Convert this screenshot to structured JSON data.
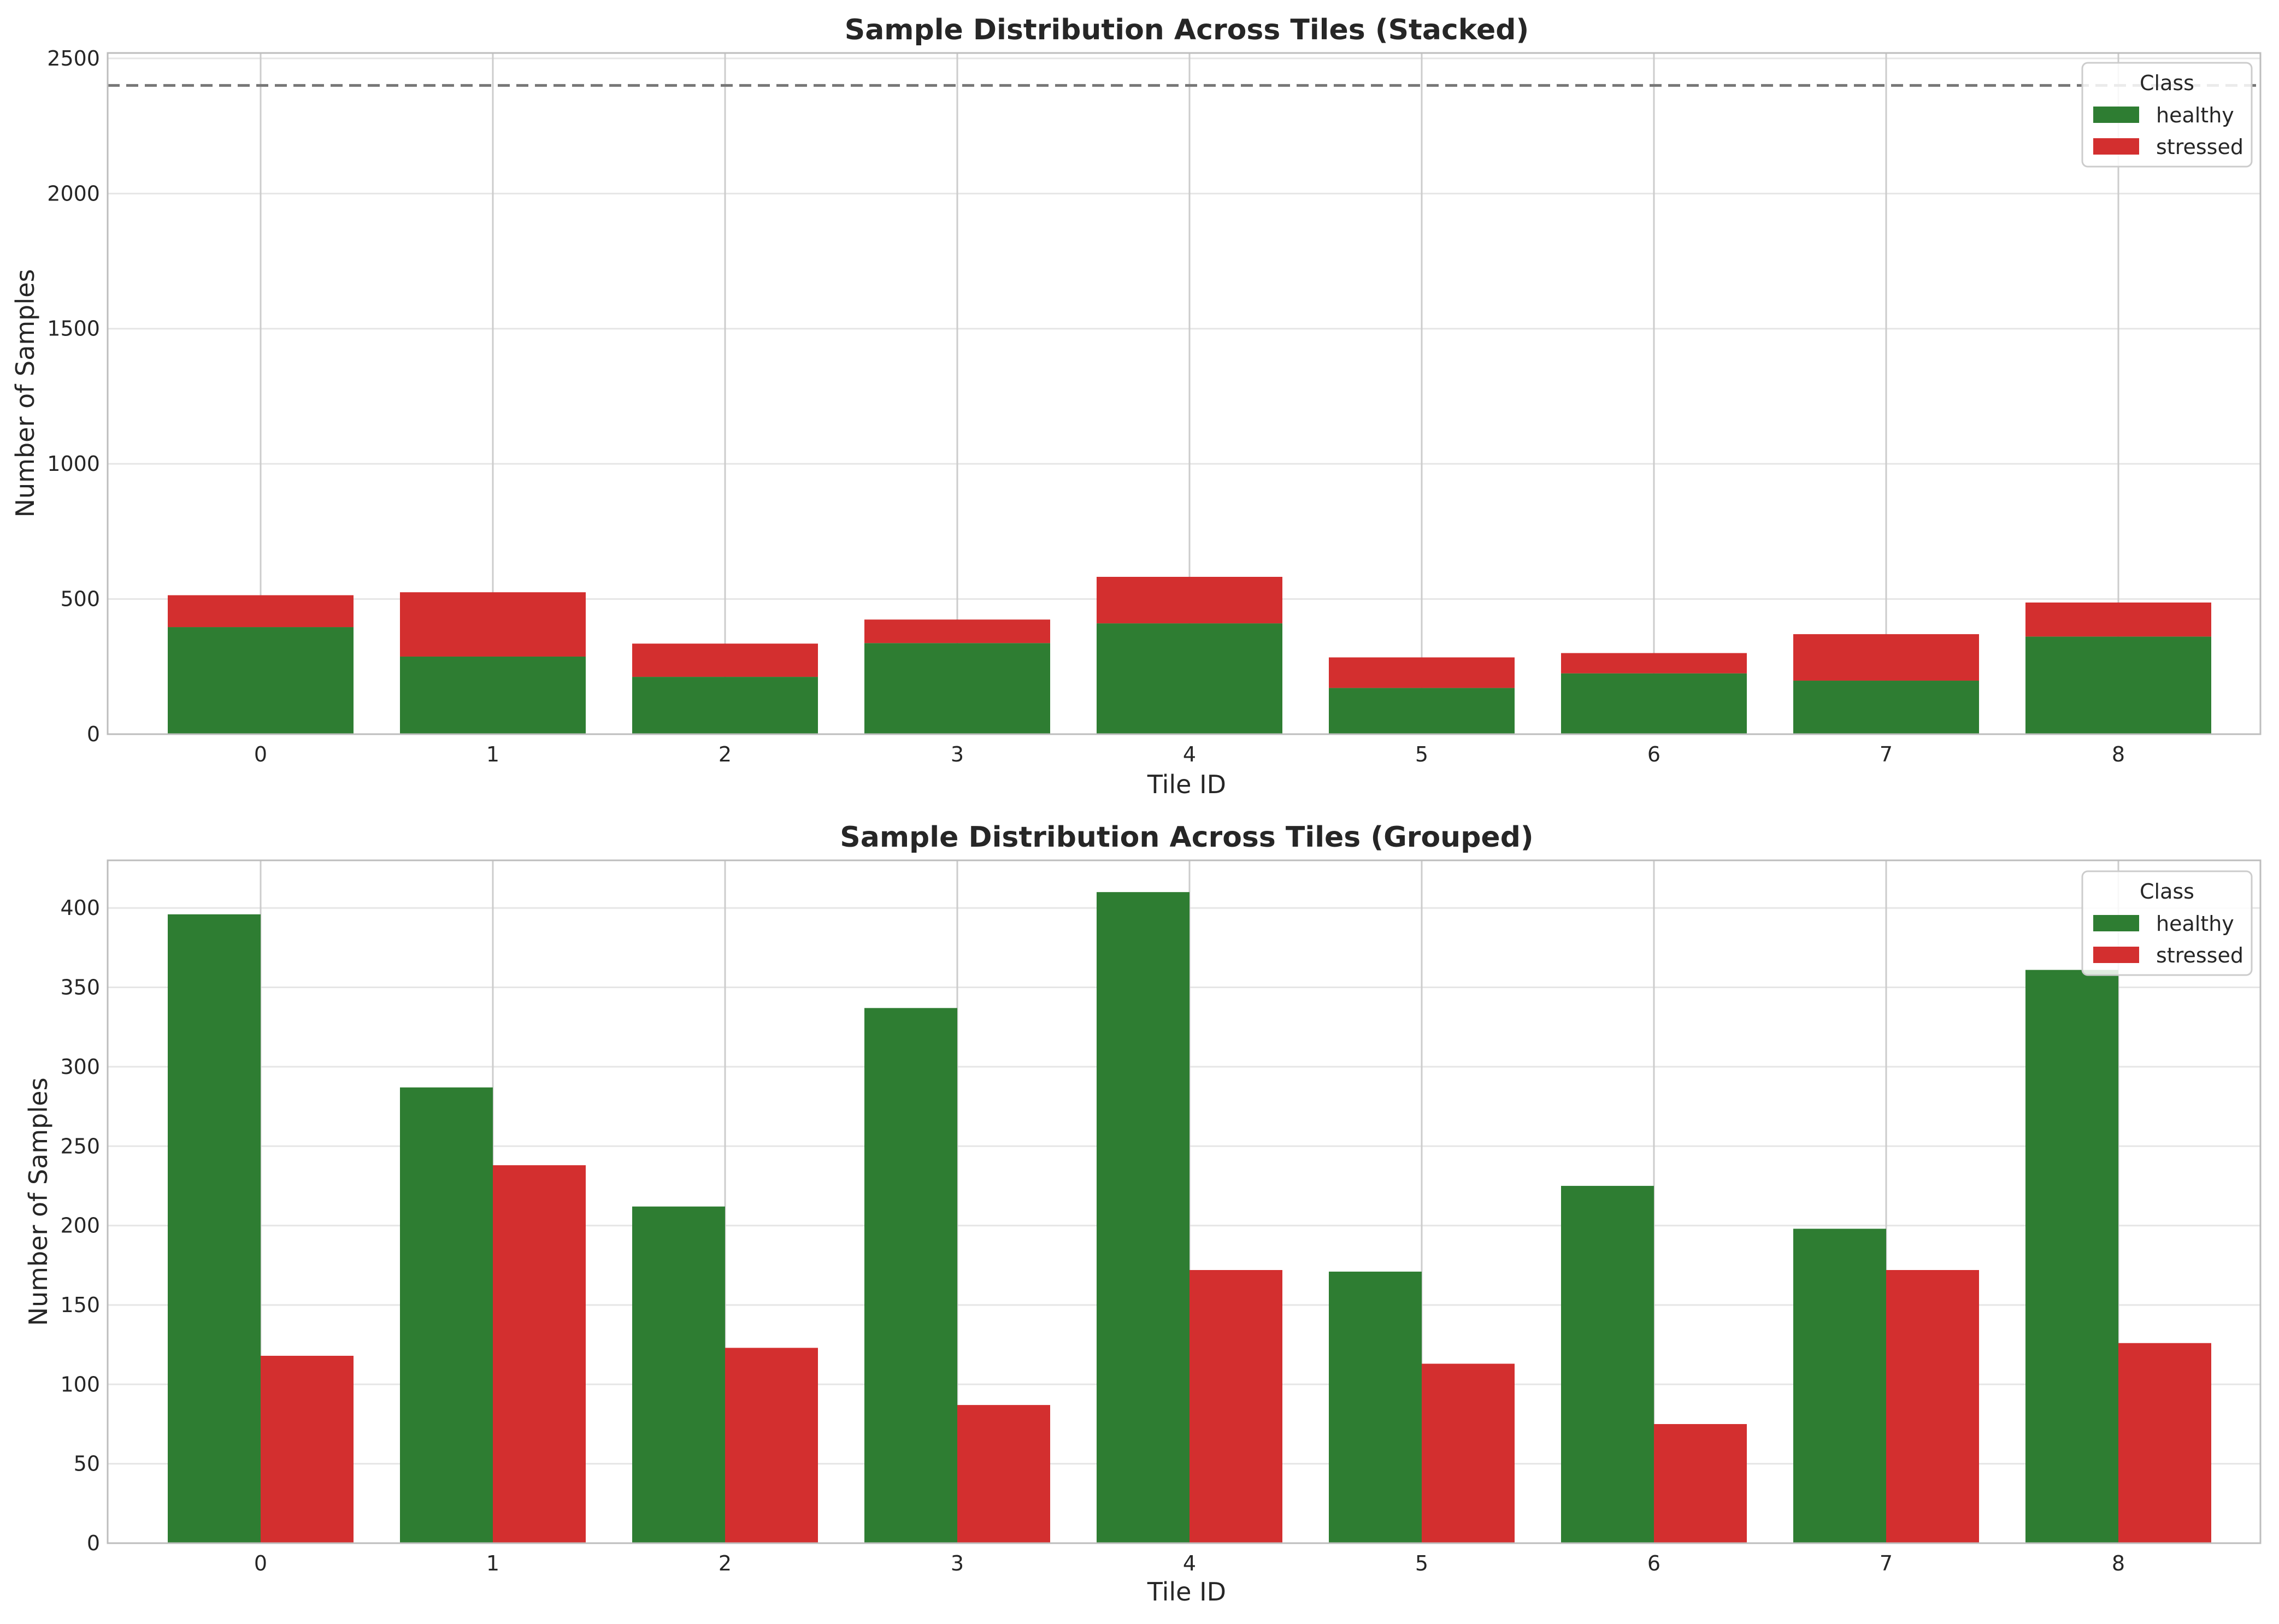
{
  "colors": {
    "healthy": "#2e7d32",
    "stressed": "#d32f2f",
    "grid": "#e6e6e6",
    "vgrid": "#cccccc",
    "frame": "#bdbdbd",
    "reference_line": "#777777"
  },
  "chart_data": [
    {
      "type": "bar",
      "mode": "stacked",
      "title": "Sample Distribution Across Tiles (Stacked)",
      "xlabel": "Tile ID",
      "ylabel": "Number of Samples",
      "categories": [
        "0",
        "1",
        "2",
        "3",
        "4",
        "5",
        "6",
        "7",
        "8"
      ],
      "series": [
        {
          "name": "healthy",
          "values": [
            396,
            287,
            212,
            337,
            410,
            171,
            225,
            198,
            361
          ]
        },
        {
          "name": "stressed",
          "values": [
            118,
            238,
            123,
            87,
            172,
            113,
            75,
            172,
            126
          ]
        }
      ],
      "ylim": [
        0,
        2520
      ],
      "yticks": [
        0,
        500,
        1000,
        1500,
        2000,
        2500
      ],
      "reference_line": {
        "y": 2400,
        "style": "dashed"
      },
      "legend": {
        "title": "Class",
        "position": "top-right"
      },
      "grid": true
    },
    {
      "type": "bar",
      "mode": "grouped",
      "title": "Sample Distribution Across Tiles (Grouped)",
      "xlabel": "Tile ID",
      "ylabel": "Number of Samples",
      "categories": [
        "0",
        "1",
        "2",
        "3",
        "4",
        "5",
        "6",
        "7",
        "8"
      ],
      "series": [
        {
          "name": "healthy",
          "values": [
            396,
            287,
            212,
            337,
            410,
            171,
            225,
            198,
            361
          ]
        },
        {
          "name": "stressed",
          "values": [
            118,
            238,
            123,
            87,
            172,
            113,
            75,
            172,
            126
          ]
        }
      ],
      "ylim": [
        0,
        430
      ],
      "yticks": [
        0,
        50,
        100,
        150,
        200,
        250,
        300,
        350,
        400
      ],
      "legend": {
        "title": "Class",
        "position": "top-right"
      },
      "grid": true
    }
  ]
}
